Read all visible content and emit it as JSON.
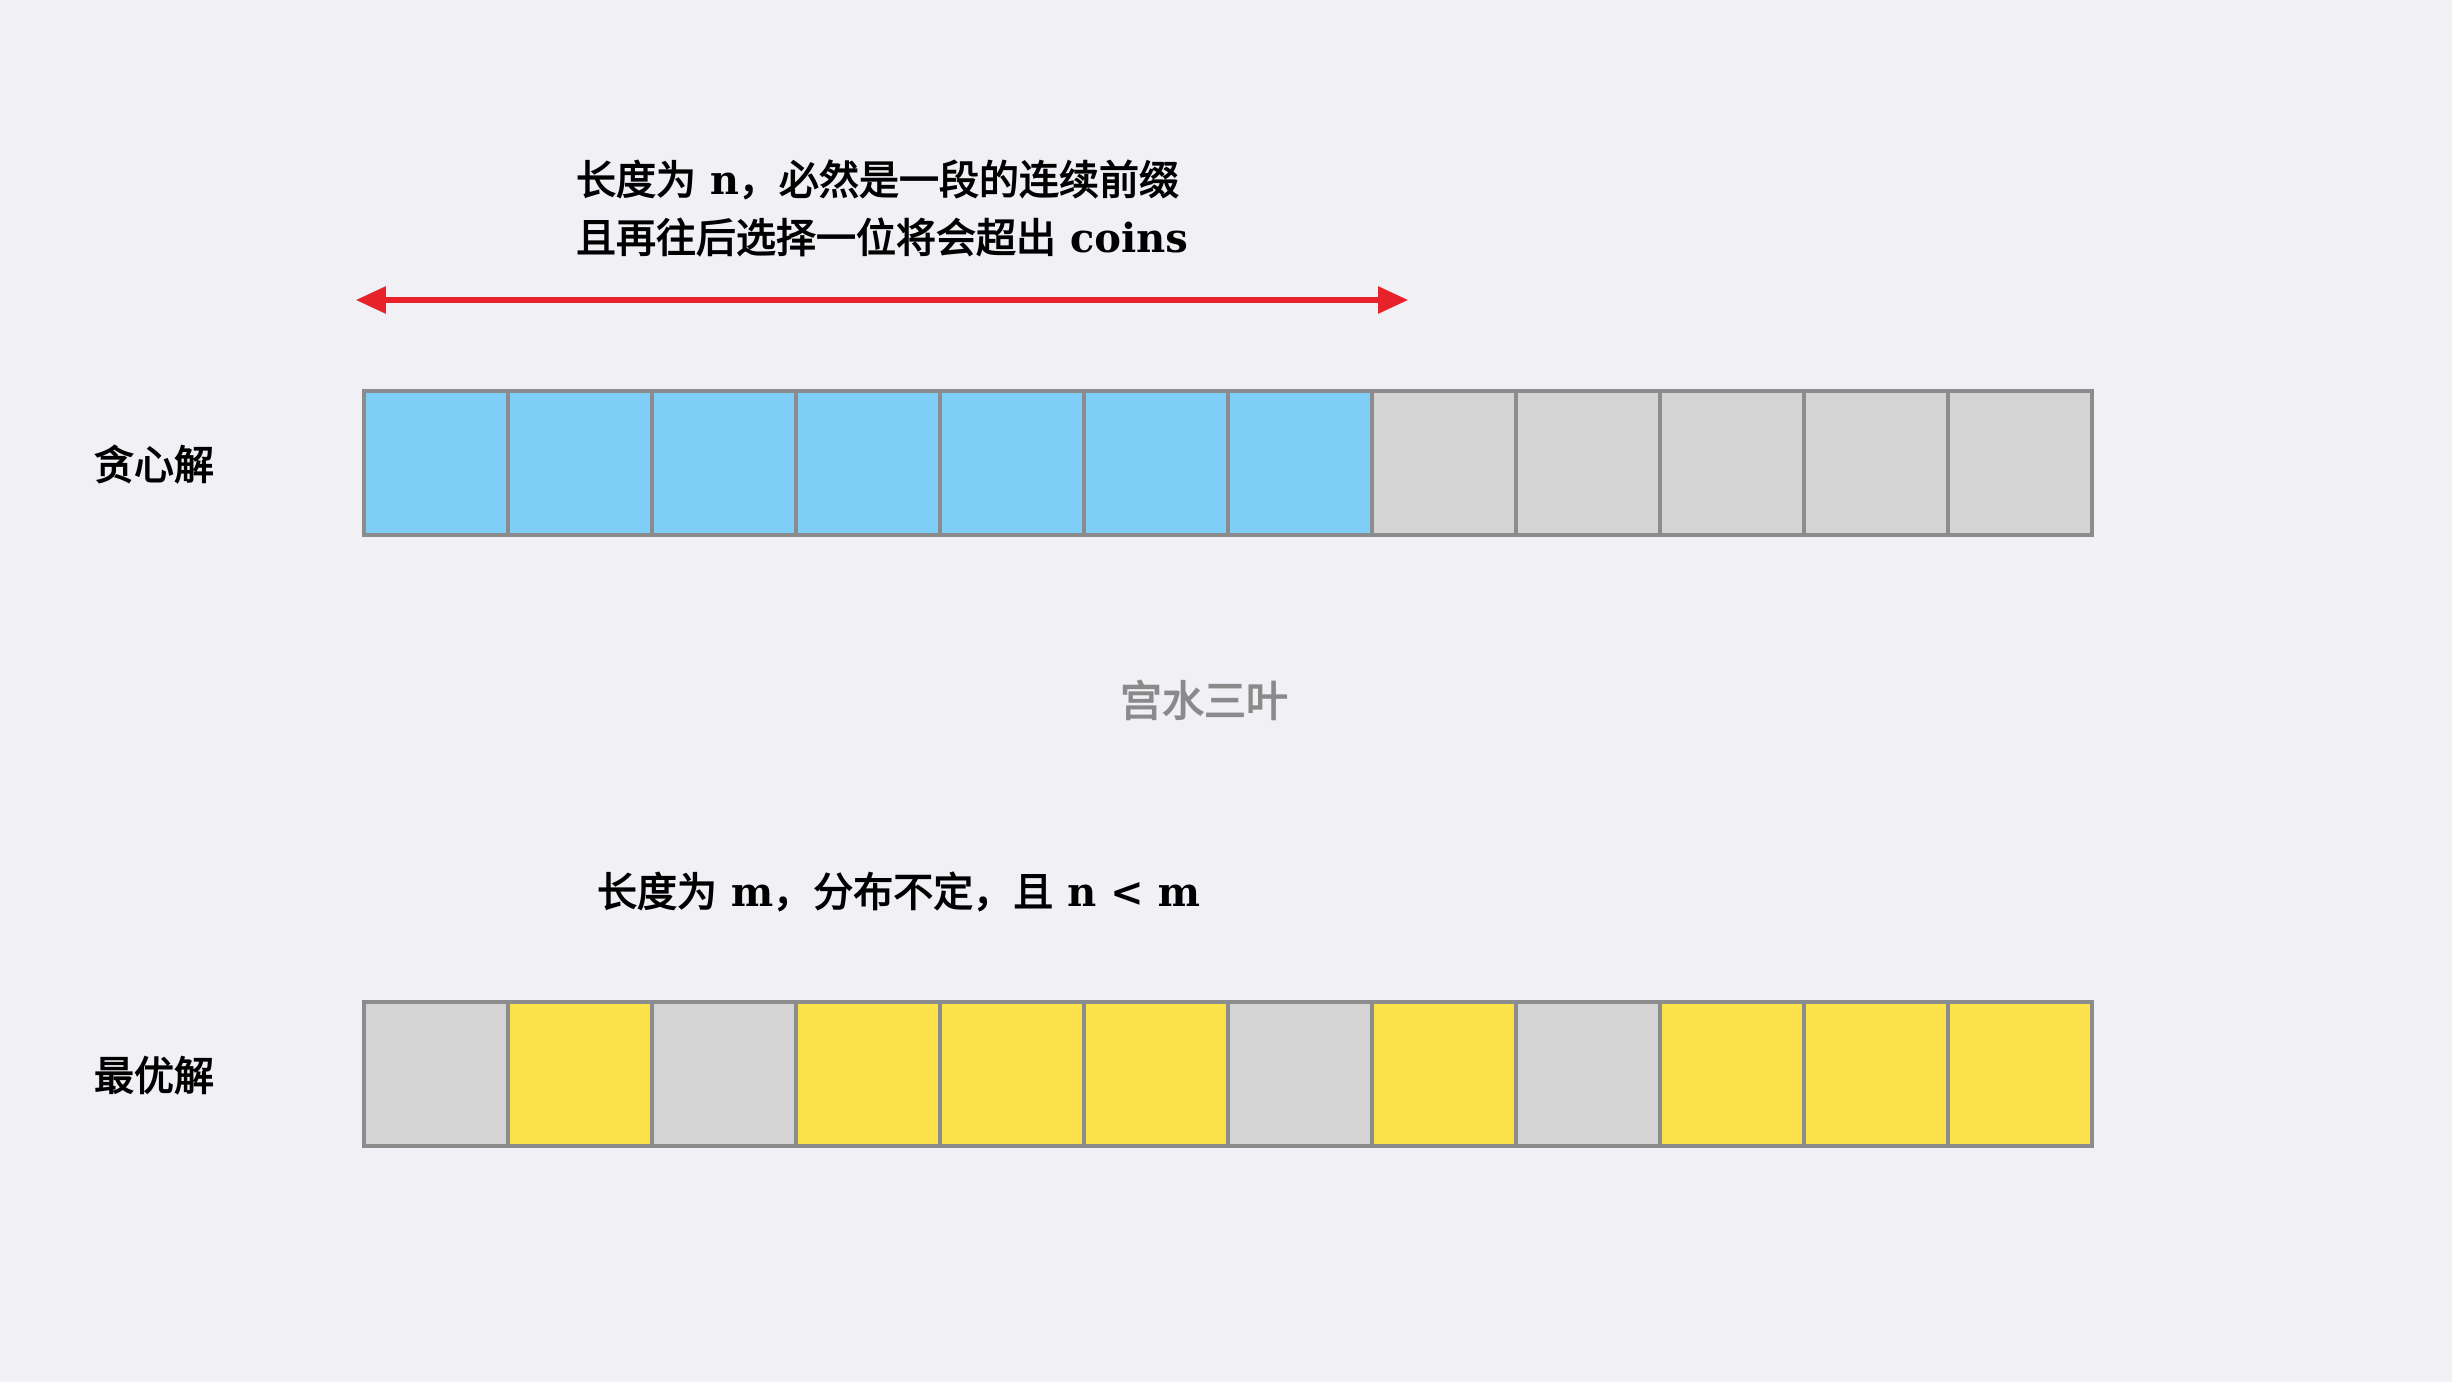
{
  "annotations": {
    "top_line1": "长度为 n，必然是一段的连续前缀",
    "top_line2": "且再往后选择一位将会超出 coins",
    "bottom": "长度为 m，分布不定，且 n < m"
  },
  "labels": {
    "greedy": "贪心解",
    "optimal": "最优解"
  },
  "watermark": "宫水三叶",
  "colors": {
    "background": "#f0f0f5",
    "selected_greedy": "#7ecef7",
    "selected_optimal": "#fce24a",
    "unselected": "#d4d4d4",
    "cell_border": "#8c8c8c",
    "arrow": "#e8222a"
  },
  "greedy_cells": [
    "blue",
    "blue",
    "blue",
    "blue",
    "blue",
    "blue",
    "blue",
    "gray",
    "gray",
    "gray",
    "gray",
    "gray"
  ],
  "optimal_cells": [
    "gray",
    "yellow",
    "gray",
    "yellow",
    "yellow",
    "yellow",
    "gray",
    "yellow",
    "gray",
    "yellow",
    "yellow",
    "yellow"
  ],
  "arrow": {
    "type": "double-headed",
    "spans_cells": 7
  }
}
